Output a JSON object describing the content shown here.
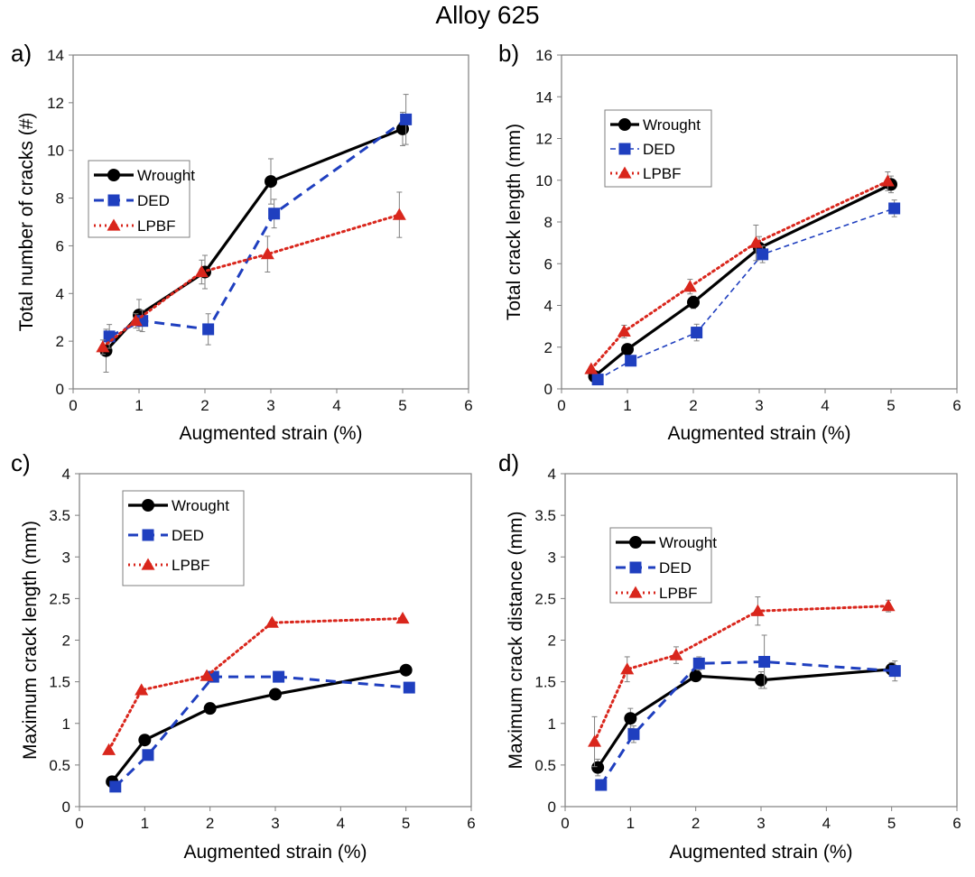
{
  "title": "Alloy 625",
  "colors": {
    "Wrought": "#000000",
    "DED": "#1f3fbf",
    "LPBF": "#d9261c"
  },
  "chart_data": [
    {
      "panel": "a)",
      "type": "line",
      "xlabel": "Augmented strain (%)",
      "ylabel": "Total number of cracks (#)",
      "xlim": [
        0,
        6
      ],
      "ylim": [
        0,
        14
      ],
      "xticks": [
        0,
        1,
        2,
        3,
        4,
        5,
        6
      ],
      "yticks": [
        0,
        2,
        4,
        6,
        8,
        10,
        12,
        14
      ],
      "legend": "left",
      "series": [
        {
          "name": "Wrought",
          "x": [
            0.5,
            1.0,
            2.0,
            3.0,
            5.0
          ],
          "y": [
            1.6,
            3.1,
            4.9,
            8.7,
            10.9
          ],
          "err": [
            0.9,
            0.65,
            0.7,
            0.95,
            0.7
          ]
        },
        {
          "name": "DED",
          "x": [
            0.55,
            1.05,
            2.05,
            3.05,
            5.05
          ],
          "y": [
            2.2,
            2.85,
            2.5,
            7.35,
            11.3
          ],
          "err": [
            0.5,
            0.45,
            0.65,
            0.6,
            1.05
          ]
        },
        {
          "name": "LPBF",
          "x": [
            0.45,
            0.95,
            1.95,
            2.95,
            4.95
          ],
          "y": [
            1.75,
            2.85,
            4.9,
            5.65,
            7.3
          ],
          "err": [
            0.3,
            0.3,
            0.5,
            0.75,
            0.95
          ]
        }
      ]
    },
    {
      "panel": "b)",
      "type": "line",
      "xlabel": "Augmented strain (%)",
      "ylabel": "Total crack length (mm)",
      "xlim": [
        0,
        6
      ],
      "ylim": [
        0,
        16
      ],
      "xticks": [
        0,
        1,
        2,
        3,
        4,
        5,
        6
      ],
      "yticks": [
        0,
        2,
        4,
        6,
        8,
        10,
        12,
        14,
        16
      ],
      "legend": "upper-left",
      "series": [
        {
          "name": "Wrought",
          "x": [
            0.5,
            1.0,
            2.0,
            3.0,
            5.0
          ],
          "y": [
            0.6,
            1.9,
            4.15,
            6.75,
            9.8
          ],
          "err": [
            0.1,
            0.25,
            0.3,
            0.55,
            0.4
          ]
        },
        {
          "name": "DED",
          "x": [
            0.55,
            1.05,
            2.05,
            3.05,
            5.05
          ],
          "y": [
            0.45,
            1.35,
            2.7,
            6.45,
            8.65
          ],
          "err": [
            0.1,
            0.2,
            0.4,
            0.4,
            0.4
          ]
        },
        {
          "name": "LPBF",
          "x": [
            0.45,
            0.95,
            1.95,
            2.95,
            4.95
          ],
          "y": [
            0.95,
            2.75,
            4.9,
            7.0,
            9.95
          ],
          "err": [
            0.1,
            0.3,
            0.35,
            0.85,
            0.45
          ]
        }
      ]
    },
    {
      "panel": "c)",
      "type": "line",
      "xlabel": "Augmented strain (%)",
      "ylabel": "Maximum crack length (mm)",
      "xlim": [
        0,
        6
      ],
      "ylim": [
        0,
        4
      ],
      "xticks": [
        0,
        1,
        2,
        3,
        4,
        5,
        6
      ],
      "yticks": [
        0,
        0.5,
        1,
        1.5,
        2,
        2.5,
        3,
        3.5,
        4
      ],
      "legend": "upper-left",
      "series": [
        {
          "name": "Wrought",
          "x": [
            0.5,
            1.0,
            2.0,
            3.0,
            5.0
          ],
          "y": [
            0.3,
            0.8,
            1.18,
            1.35,
            1.64
          ],
          "err": []
        },
        {
          "name": "DED",
          "x": [
            0.55,
            1.05,
            2.05,
            3.05,
            5.05
          ],
          "y": [
            0.24,
            0.62,
            1.56,
            1.56,
            1.43
          ],
          "err": []
        },
        {
          "name": "LPBF",
          "x": [
            0.45,
            0.95,
            1.95,
            2.95,
            4.95
          ],
          "y": [
            0.68,
            1.4,
            1.57,
            2.21,
            2.26
          ],
          "err": []
        }
      ]
    },
    {
      "panel": "d)",
      "type": "line",
      "xlabel": "Augmented strain (%)",
      "ylabel": "Maximum crack distance (mm)",
      "xlim": [
        0,
        6
      ],
      "ylim": [
        0,
        4
      ],
      "xticks": [
        0,
        1,
        2,
        3,
        4,
        5,
        6
      ],
      "yticks": [
        0,
        0.5,
        1,
        1.5,
        2,
        2.5,
        3,
        3.5,
        4
      ],
      "legend": "upper-left",
      "series": [
        {
          "name": "Wrought",
          "x": [
            0.5,
            1.0,
            2.0,
            3.0,
            5.0
          ],
          "y": [
            0.47,
            1.06,
            1.57,
            1.52,
            1.65
          ],
          "err": [
            0.1,
            0.12,
            0.05,
            0.1,
            0.08
          ]
        },
        {
          "name": "DED",
          "x": [
            0.55,
            1.05,
            2.05,
            3.05,
            5.05
          ],
          "y": [
            0.26,
            0.87,
            1.72,
            1.74,
            1.63
          ],
          "err": [
            0.06,
            0.1,
            0.08,
            0.32,
            0.12
          ]
        },
        {
          "name": "LPBF",
          "x": [
            0.45,
            0.95,
            1.7,
            2.95,
            4.95
          ],
          "y": [
            0.78,
            1.65,
            1.82,
            2.35,
            2.41
          ],
          "err": [
            0.3,
            0.15,
            0.1,
            0.17,
            0.07
          ]
        }
      ]
    }
  ]
}
